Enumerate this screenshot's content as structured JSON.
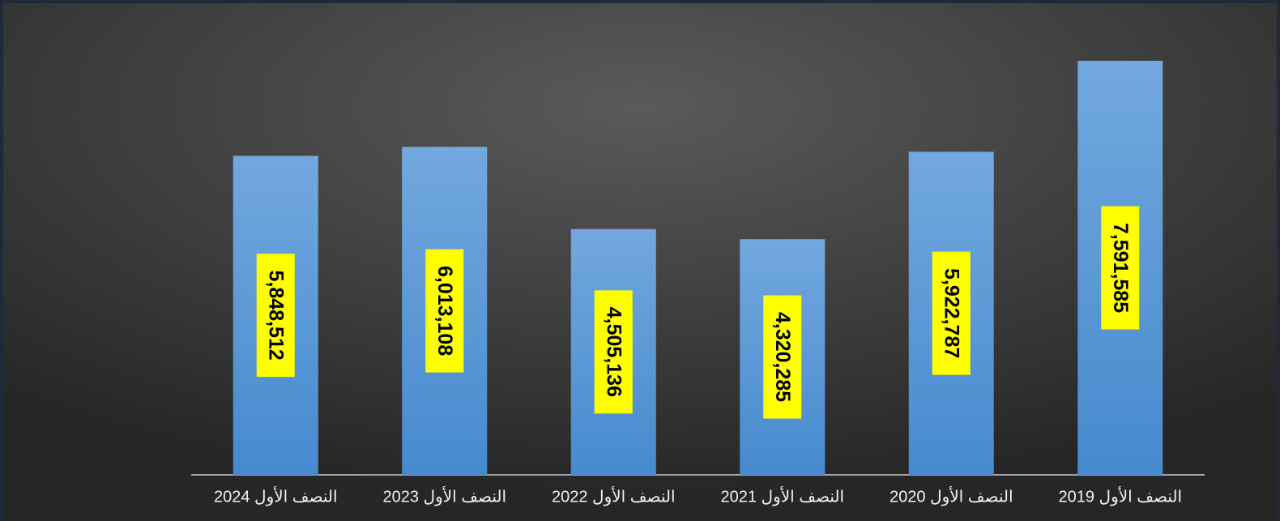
{
  "chart_data": {
    "type": "bar",
    "categories": [
      "النصف الأول 2024",
      "النصف الأول 2023",
      "النصف الأول 2022",
      "النصف الأول 2021",
      "النصف الأول 2020",
      "النصف الأول 2019"
    ],
    "values": [
      5848512,
      6013108,
      4505136,
      4320285,
      5922787,
      7591585
    ],
    "value_labels": [
      "5,848,512",
      "6,013,108",
      "4,505,136",
      "4,320,285",
      "5,922,787",
      "7,591,585"
    ],
    "color": "#5b9bd5"
  }
}
